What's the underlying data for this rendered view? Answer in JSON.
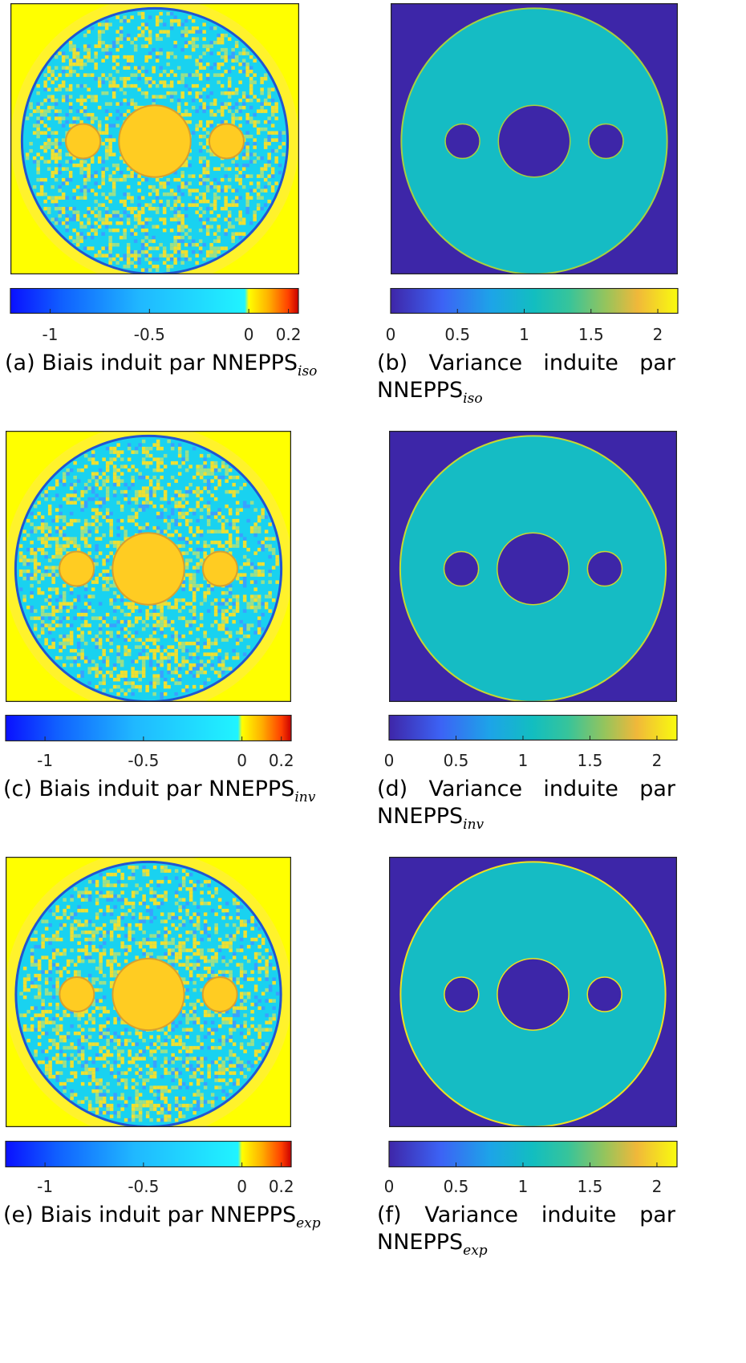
{
  "figure": {
    "panels": [
      {
        "id": "a",
        "kind": "bias",
        "caption": {
          "label": "(a)",
          "text": "Biais induit par",
          "name": "NNEPPS",
          "sub": "iso"
        }
      },
      {
        "id": "b",
        "kind": "variance",
        "caption": {
          "label": "(b)",
          "words": [
            "Variance",
            "induite",
            "par"
          ],
          "name": "NNEPPS",
          "sub": "iso"
        }
      },
      {
        "id": "c",
        "kind": "bias",
        "caption": {
          "label": "(c)",
          "text": "Biais induit par",
          "name": "NNEPPS",
          "sub": "inv"
        }
      },
      {
        "id": "d",
        "kind": "variance",
        "caption": {
          "label": "(d)",
          "words": [
            "Variance",
            "induite",
            "par"
          ],
          "name": "NNEPPS",
          "sub": "inv"
        }
      },
      {
        "id": "e",
        "kind": "bias",
        "caption": {
          "label": "(e)",
          "text": "Biais induit par",
          "name": "NNEPPS",
          "sub": "exp"
        }
      },
      {
        "id": "f",
        "kind": "variance",
        "caption": {
          "label": "(f)",
          "words": [
            "Variance",
            "induite",
            "par"
          ],
          "name": "NNEPPS",
          "sub": "exp"
        }
      }
    ]
  },
  "chart_data": [
    {
      "panel": "a",
      "type": "heatmap",
      "content": "bias image",
      "colorbar": {
        "range": [
          -1.2,
          0.25
        ],
        "ticks": [
          -1,
          -0.5,
          0,
          0.2
        ],
        "tick_labels": [
          "-1",
          "-0.5",
          "0",
          "0.2"
        ],
        "colormap": "blue-cyan-yellow-red"
      },
      "colors": {
        "background": "#ffff00",
        "inner": "#19d2f0",
        "noise": "#f0e030",
        "circle": "#ffcc22",
        "edge": "#2255d0"
      }
    },
    {
      "panel": "b",
      "type": "heatmap",
      "content": "variance image",
      "colorbar": {
        "range": [
          0,
          2.15
        ],
        "ticks": [
          0,
          0.5,
          1,
          1.5,
          2
        ],
        "tick_labels": [
          "0",
          "0.5",
          "1",
          "1.5",
          "2"
        ],
        "colormap": "parula"
      },
      "colors": {
        "background": "#3d26a8",
        "ring": "#15bcc4",
        "edge": "#a8d040"
      }
    },
    {
      "panel": "c",
      "type": "heatmap",
      "content": "bias image",
      "colorbar": {
        "range": [
          -1.2,
          0.25
        ],
        "ticks": [
          -1,
          -0.5,
          0,
          0.2
        ],
        "tick_labels": [
          "-1",
          "-0.5",
          "0",
          "0.2"
        ],
        "colormap": "blue-cyan-yellow-red"
      },
      "colors": {
        "background": "#ffff00",
        "inner": "#19d2f0",
        "noise": "#f0e030",
        "circle": "#ffcc22",
        "edge": "#2255d0"
      }
    },
    {
      "panel": "d",
      "type": "heatmap",
      "content": "variance image",
      "colorbar": {
        "range": [
          0,
          2.15
        ],
        "ticks": [
          0,
          0.5,
          1,
          1.5,
          2
        ],
        "tick_labels": [
          "0",
          "0.5",
          "1",
          "1.5",
          "2"
        ],
        "colormap": "parula"
      },
      "colors": {
        "background": "#3d26a8",
        "ring": "#15bcc4",
        "edge": "#c8d830"
      }
    },
    {
      "panel": "e",
      "type": "heatmap",
      "content": "bias image",
      "colorbar": {
        "range": [
          -1.2,
          0.25
        ],
        "ticks": [
          -1,
          -0.5,
          0,
          0.2
        ],
        "tick_labels": [
          "-1",
          "-0.5",
          "0",
          "0.2"
        ],
        "colormap": "blue-cyan-yellow-red"
      },
      "colors": {
        "background": "#ffff00",
        "inner": "#19d2f0",
        "noise": "#f0e030",
        "circle": "#ffcc22",
        "edge": "#2255d0"
      }
    },
    {
      "panel": "f",
      "type": "heatmap",
      "content": "variance image",
      "colorbar": {
        "range": [
          0,
          2.15
        ],
        "ticks": [
          0,
          0.5,
          1,
          1.5,
          2
        ],
        "tick_labels": [
          "0",
          "0.5",
          "1",
          "1.5",
          "2"
        ],
        "colormap": "parula"
      },
      "colors": {
        "background": "#3d26a8",
        "ring": "#15bcc4",
        "edge": "#f0e020"
      }
    }
  ]
}
